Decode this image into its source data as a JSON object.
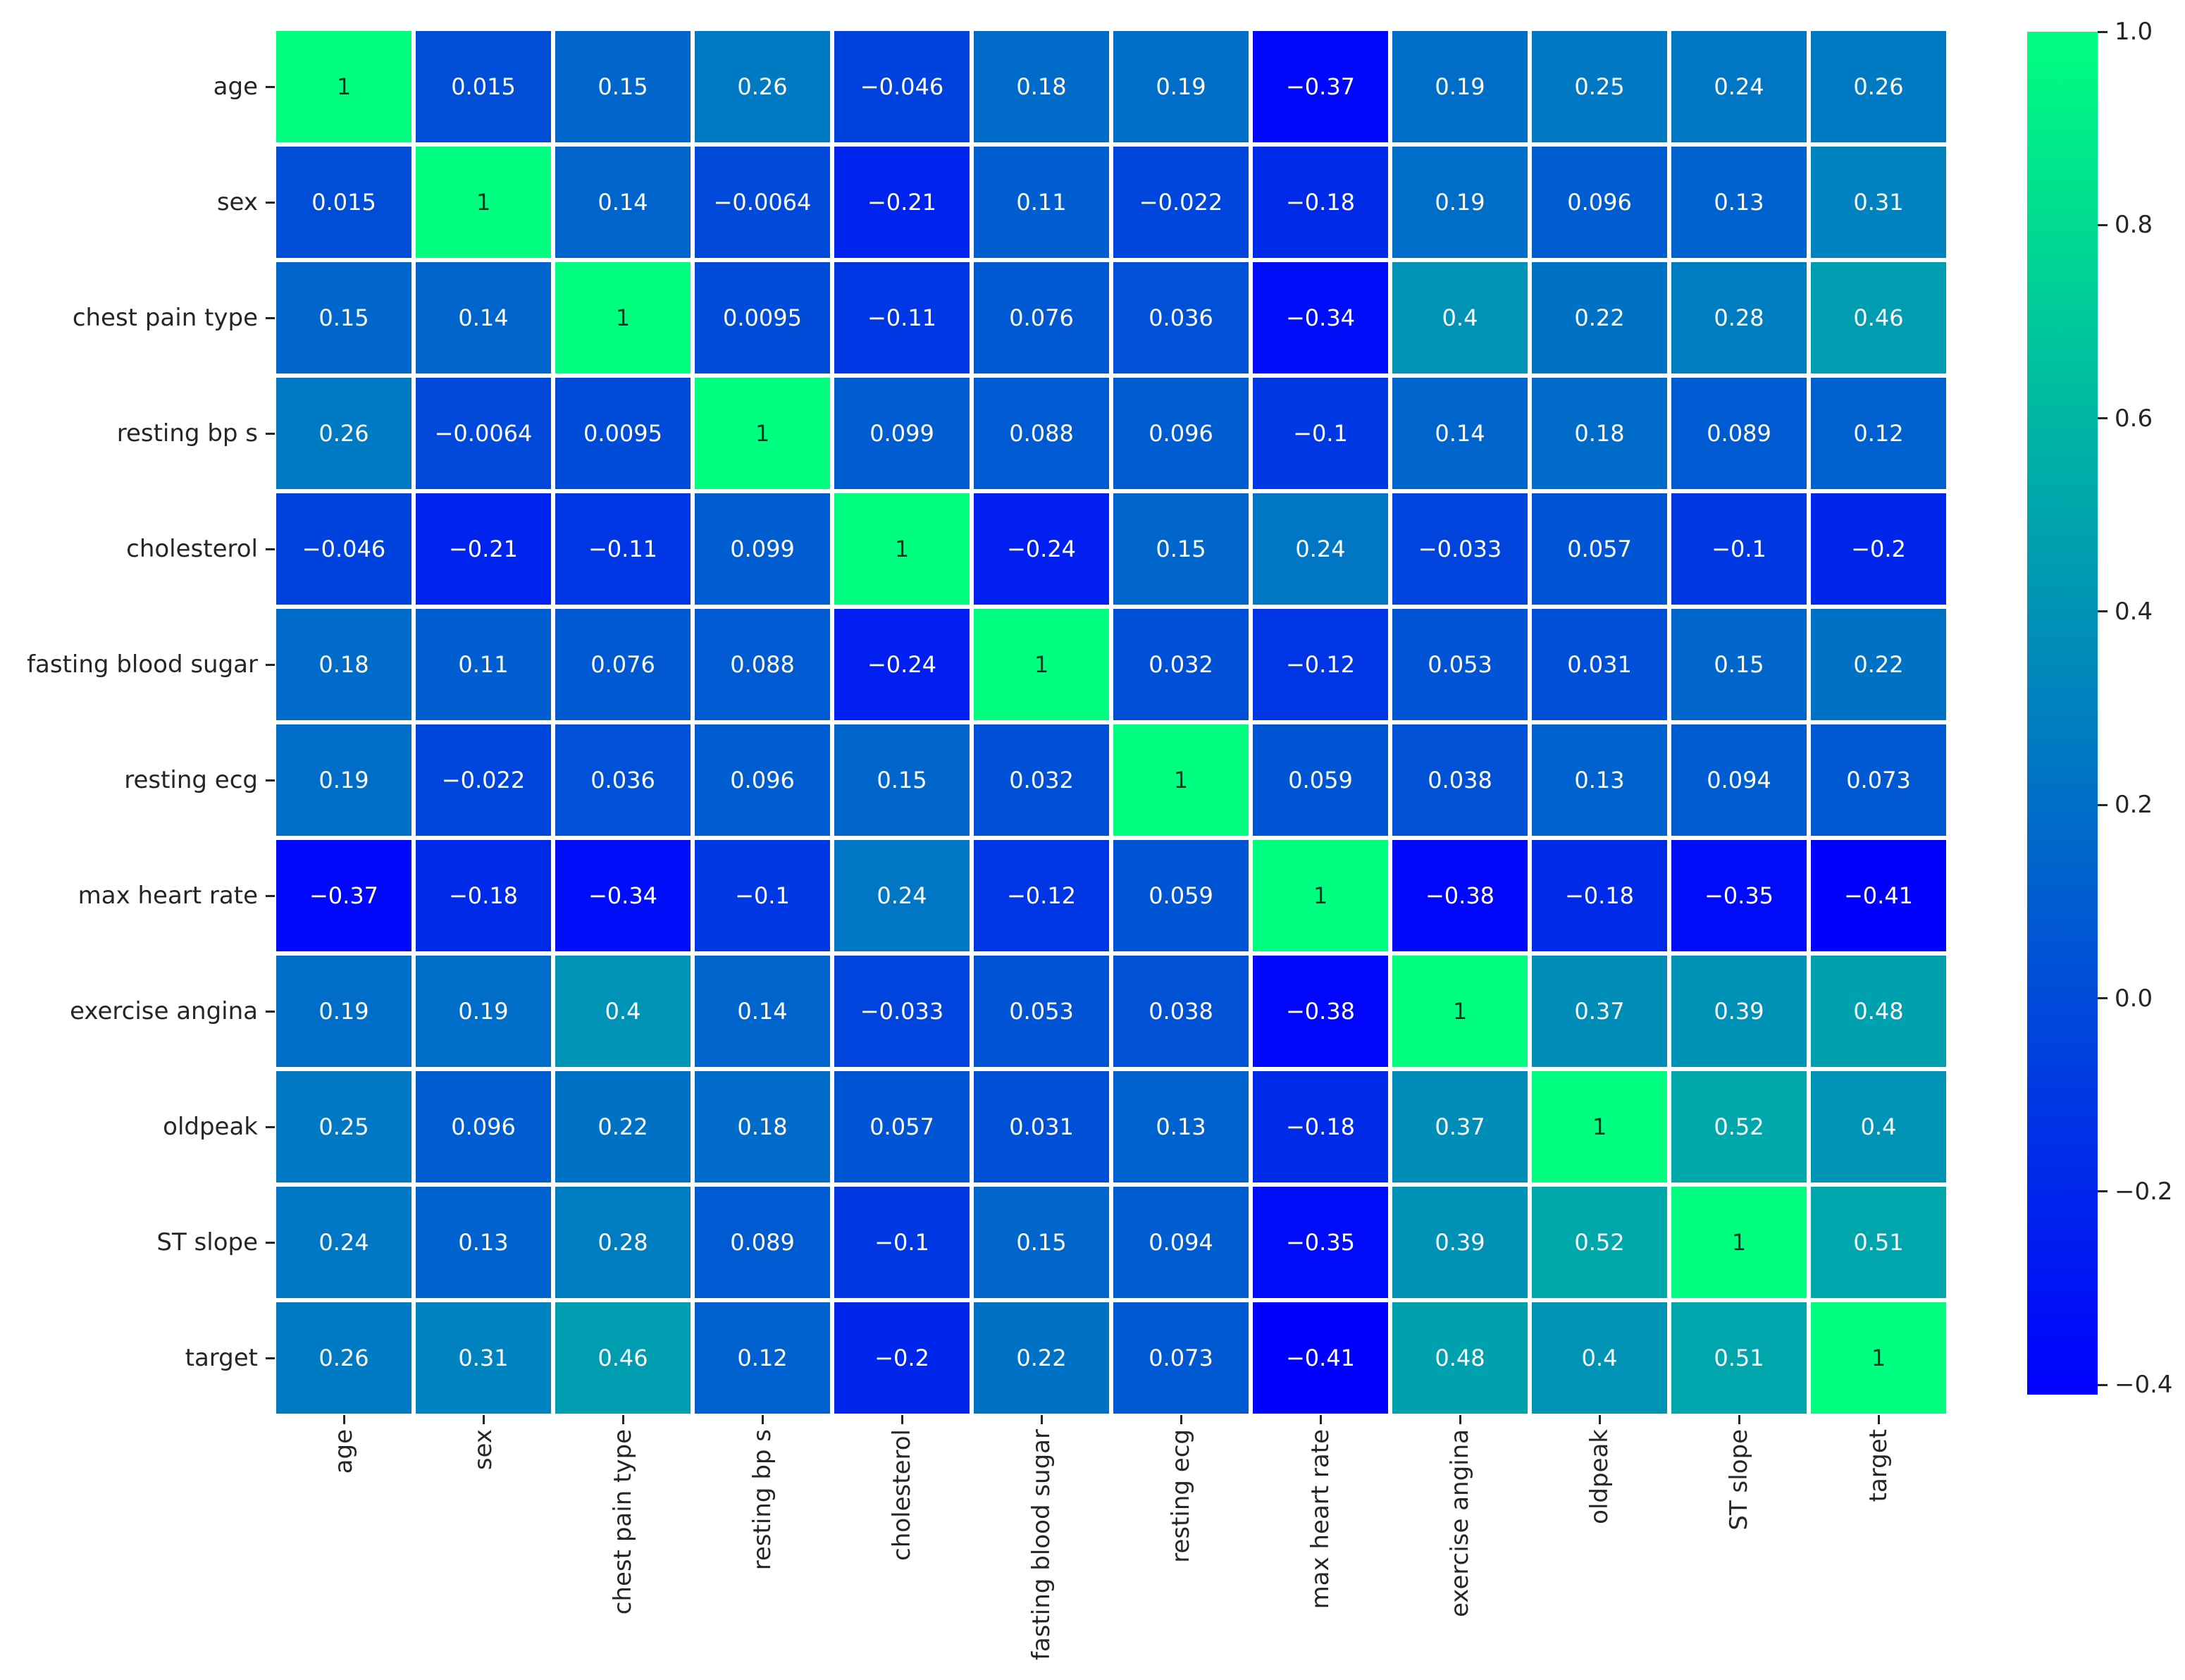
{
  "chart_data": {
    "type": "heatmap",
    "title": "",
    "categories": [
      "age",
      "sex",
      "chest pain type",
      "resting bp s",
      "cholesterol",
      "fasting blood sugar",
      "resting ecg",
      "max heart rate",
      "exercise angina",
      "oldpeak",
      "ST slope",
      "target"
    ],
    "matrix": [
      [
        1,
        0.015,
        0.15,
        0.26,
        -0.046,
        0.18,
        0.19,
        -0.37,
        0.19,
        0.25,
        0.24,
        0.26
      ],
      [
        0.015,
        1,
        0.14,
        -0.0064,
        -0.21,
        0.11,
        -0.022,
        -0.18,
        0.19,
        0.096,
        0.13,
        0.31
      ],
      [
        0.15,
        0.14,
        1,
        0.0095,
        -0.11,
        0.076,
        0.036,
        -0.34,
        0.4,
        0.22,
        0.28,
        0.46
      ],
      [
        0.26,
        -0.0064,
        0.0095,
        1,
        0.099,
        0.088,
        0.096,
        -0.1,
        0.14,
        0.18,
        0.089,
        0.12
      ],
      [
        -0.046,
        -0.21,
        -0.11,
        0.099,
        1,
        -0.24,
        0.15,
        0.24,
        -0.033,
        0.057,
        -0.1,
        -0.2
      ],
      [
        0.18,
        0.11,
        0.076,
        0.088,
        -0.24,
        1,
        0.032,
        -0.12,
        0.053,
        0.031,
        0.15,
        0.22
      ],
      [
        0.19,
        -0.022,
        0.036,
        0.096,
        0.15,
        0.032,
        1,
        0.059,
        0.038,
        0.13,
        0.094,
        0.073
      ],
      [
        -0.37,
        -0.18,
        -0.34,
        -0.1,
        0.24,
        -0.12,
        0.059,
        1,
        -0.38,
        -0.18,
        -0.35,
        -0.41
      ],
      [
        0.19,
        0.19,
        0.4,
        0.14,
        -0.033,
        0.053,
        0.038,
        -0.38,
        1,
        0.37,
        0.39,
        0.48
      ],
      [
        0.25,
        0.096,
        0.22,
        0.18,
        0.057,
        0.031,
        0.13,
        -0.18,
        0.37,
        1,
        0.52,
        0.4
      ],
      [
        0.24,
        0.13,
        0.28,
        0.089,
        -0.1,
        0.15,
        0.094,
        -0.35,
        0.39,
        0.52,
        1,
        0.51
      ],
      [
        0.26,
        0.31,
        0.46,
        0.12,
        -0.2,
        0.22,
        0.073,
        -0.41,
        0.48,
        0.4,
        0.51,
        1
      ]
    ],
    "colorbar": {
      "ticks": [
        1.0,
        0.8,
        0.6,
        0.4,
        0.2,
        0.0,
        -0.2,
        -0.4
      ],
      "vmin": -0.41,
      "vmax": 1.0,
      "gradient": [
        "#0000ff",
        "#0040df",
        "#0080bf",
        "#00bf9f",
        "#00ff80"
      ]
    },
    "colors": {
      "background": "#ffffff",
      "grid_line": "#ffffff",
      "annotation_dark": "#262626",
      "annotation_light": "#ffffff",
      "tick": "#262626"
    },
    "layout_hints": {
      "legend_position": "right-colorbar",
      "x_tick_rotation_deg": 90,
      "grid": "off"
    }
  }
}
